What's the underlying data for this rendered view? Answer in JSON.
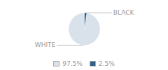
{
  "chart_data": {
    "type": "pie",
    "categories": [
      "WHITE",
      "BLACK"
    ],
    "values": [
      97.5,
      2.5
    ],
    "value_labels": [
      "97.5%",
      "2.5%"
    ],
    "colors": [
      "#d9e1ea",
      "#2e5f8a"
    ],
    "legend": "bottom"
  }
}
